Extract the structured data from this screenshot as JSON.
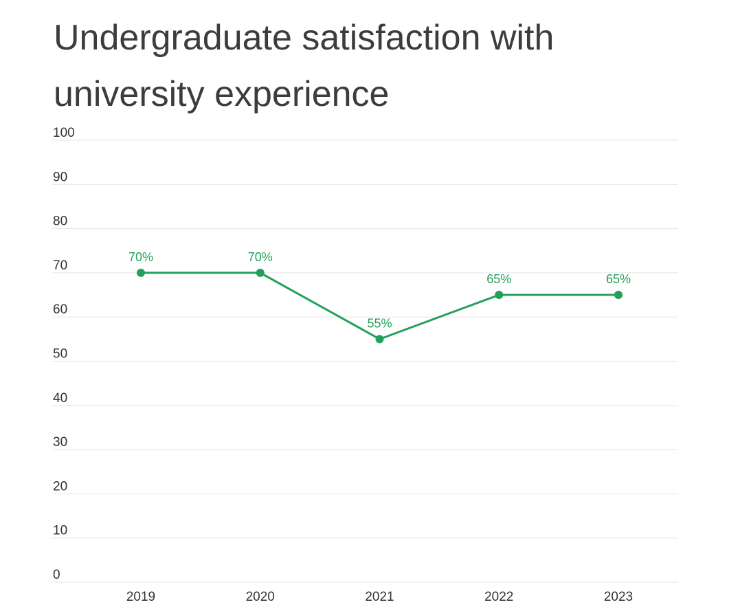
{
  "colors": {
    "series": "#23a05a",
    "grid": "#e4e4e4",
    "text": "#333333",
    "title": "#3c3c3c"
  },
  "chart_data": {
    "type": "line",
    "title": "Undergraduate satisfaction with university experience",
    "xlabel": "",
    "ylabel": "",
    "categories": [
      "2019",
      "2020",
      "2021",
      "2022",
      "2023"
    ],
    "series": [
      {
        "values": [
          70,
          70,
          55,
          65,
          65
        ],
        "labels": [
          "70%",
          "70%",
          "55%",
          "65%",
          "65%"
        ]
      }
    ],
    "ylim": [
      0,
      100
    ],
    "yticks": [
      "0",
      "10",
      "20",
      "30",
      "40",
      "50",
      "60",
      "70",
      "80",
      "90",
      "100"
    ],
    "grid": true,
    "markers": true,
    "legend": "none"
  }
}
